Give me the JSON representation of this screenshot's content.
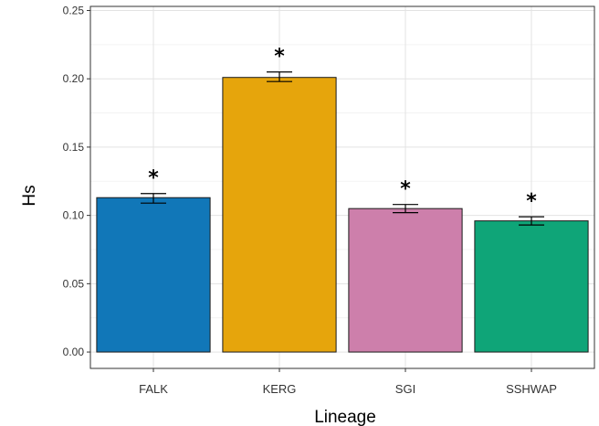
{
  "chart_data": {
    "type": "bar",
    "categories": [
      "FALK",
      "KERG",
      "SGI",
      "SSHWAP"
    ],
    "values": [
      0.113,
      0.201,
      0.105,
      0.096
    ],
    "error_low": [
      0.109,
      0.198,
      0.102,
      0.093
    ],
    "error_high": [
      0.116,
      0.205,
      0.108,
      0.099
    ],
    "annotations": [
      "*",
      "*",
      "*",
      "*"
    ],
    "colors": [
      "#1177b8",
      "#e6a50c",
      "#cd7fab",
      "#0fa578"
    ],
    "xlabel": "Lineage",
    "ylabel": "Hs",
    "ylim": [
      -0.012,
      0.253
    ],
    "yticks": [
      "0.00",
      "0.05",
      "0.10",
      "0.15",
      "0.20",
      "0.25"
    ],
    "grid": true,
    "legend": "none"
  }
}
